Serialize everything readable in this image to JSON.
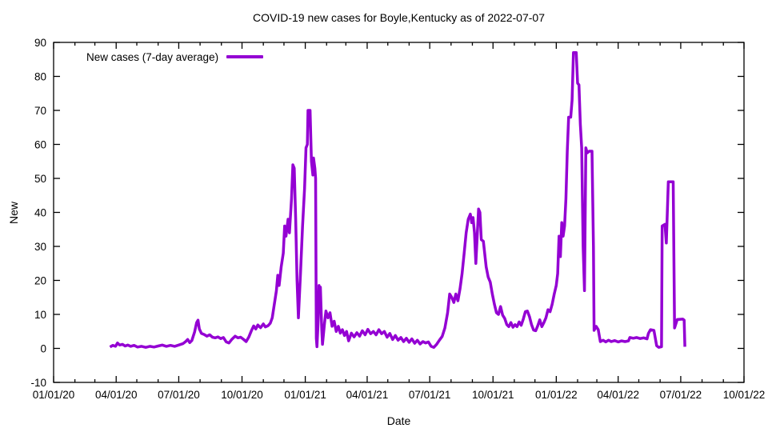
{
  "title": "COVID-19 new cases for Boyle,Kentucky as of 2022-07-07",
  "colors": {
    "line": "#9400d3",
    "axis": "#000000",
    "background": "#ffffff"
  },
  "legend": {
    "label": "New cases (7-day average)"
  },
  "chart_data": {
    "type": "line",
    "title": "COVID-19 new cases for Boyle,Kentucky as of 2022-07-07",
    "xlabel": "Date",
    "ylabel": "New",
    "grid": false,
    "legend_position": "top-left-inside",
    "x_axis": {
      "start": "2020-01-01",
      "end": "2022-10-01",
      "major_tick_labels": [
        "01/01/20",
        "04/01/20",
        "07/01/20",
        "10/01/20",
        "01/01/21",
        "04/01/21",
        "07/01/21",
        "10/01/21",
        "01/01/22",
        "04/01/22",
        "07/01/22",
        "10/01/22"
      ],
      "minor_tick_interval": "month"
    },
    "ylim": [
      -10,
      90
    ],
    "y_ticks": [
      -10,
      0,
      10,
      20,
      30,
      40,
      50,
      60,
      70,
      80,
      90
    ],
    "series": [
      {
        "name": "New cases (7-day average)",
        "color": "#9400d3",
        "points": [
          [
            "2020-03-23",
            0.4
          ],
          [
            "2020-03-27",
            0.9
          ],
          [
            "2020-03-31",
            0.6
          ],
          [
            "2020-04-03",
            1.6
          ],
          [
            "2020-04-06",
            1.0
          ],
          [
            "2020-04-10",
            1.2
          ],
          [
            "2020-04-14",
            0.7
          ],
          [
            "2020-04-18",
            1.0
          ],
          [
            "2020-04-22",
            0.6
          ],
          [
            "2020-04-27",
            0.9
          ],
          [
            "2020-05-02",
            0.4
          ],
          [
            "2020-05-08",
            0.6
          ],
          [
            "2020-05-14",
            0.3
          ],
          [
            "2020-05-20",
            0.6
          ],
          [
            "2020-05-26",
            0.4
          ],
          [
            "2020-06-01",
            0.7
          ],
          [
            "2020-06-07",
            1.0
          ],
          [
            "2020-06-13",
            0.6
          ],
          [
            "2020-06-19",
            0.9
          ],
          [
            "2020-06-25",
            0.6
          ],
          [
            "2020-07-01",
            1.0
          ],
          [
            "2020-07-07",
            1.4
          ],
          [
            "2020-07-11",
            2.0
          ],
          [
            "2020-07-14",
            2.6
          ],
          [
            "2020-07-17",
            1.7
          ],
          [
            "2020-07-20",
            2.3
          ],
          [
            "2020-07-24",
            4.8
          ],
          [
            "2020-07-27",
            7.6
          ],
          [
            "2020-07-29",
            8.3
          ],
          [
            "2020-07-31",
            5.7
          ],
          [
            "2020-08-03",
            4.4
          ],
          [
            "2020-08-07",
            4.1
          ],
          [
            "2020-08-11",
            3.6
          ],
          [
            "2020-08-15",
            4.0
          ],
          [
            "2020-08-19",
            3.3
          ],
          [
            "2020-08-23",
            3.1
          ],
          [
            "2020-08-27",
            3.4
          ],
          [
            "2020-08-31",
            2.9
          ],
          [
            "2020-09-04",
            3.2
          ],
          [
            "2020-09-08",
            1.9
          ],
          [
            "2020-09-12",
            1.6
          ],
          [
            "2020-09-16",
            2.6
          ],
          [
            "2020-09-21",
            3.6
          ],
          [
            "2020-09-25",
            3.1
          ],
          [
            "2020-09-29",
            3.3
          ],
          [
            "2020-10-03",
            2.7
          ],
          [
            "2020-10-07",
            2.0
          ],
          [
            "2020-10-11",
            3.4
          ],
          [
            "2020-10-15",
            5.4
          ],
          [
            "2020-10-18",
            6.6
          ],
          [
            "2020-10-21",
            5.7
          ],
          [
            "2020-10-24",
            6.9
          ],
          [
            "2020-10-28",
            6.1
          ],
          [
            "2020-11-01",
            7.2
          ],
          [
            "2020-11-04",
            6.3
          ],
          [
            "2020-11-08",
            6.7
          ],
          [
            "2020-11-11",
            7.4
          ],
          [
            "2020-11-14",
            9.0
          ],
          [
            "2020-11-17",
            13.0
          ],
          [
            "2020-11-20",
            17.0
          ],
          [
            "2020-11-22",
            21.5
          ],
          [
            "2020-11-24",
            18.5
          ],
          [
            "2020-11-27",
            24.0
          ],
          [
            "2020-11-30",
            28.0
          ],
          [
            "2020-12-02",
            36.0
          ],
          [
            "2020-12-04",
            33.0
          ],
          [
            "2020-12-07",
            38.0
          ],
          [
            "2020-12-09",
            34.0
          ],
          [
            "2020-12-12",
            44.0
          ],
          [
            "2020-12-14",
            54.0
          ],
          [
            "2020-12-16",
            53.0
          ],
          [
            "2020-12-18",
            38.0
          ],
          [
            "2020-12-20",
            20.0
          ],
          [
            "2020-12-22",
            9.0
          ],
          [
            "2020-12-25",
            22.0
          ],
          [
            "2020-12-28",
            36.0
          ],
          [
            "2020-12-31",
            47.0
          ],
          [
            "2021-01-02",
            59.0
          ],
          [
            "2021-01-04",
            60.0
          ],
          [
            "2021-01-05",
            70.0
          ],
          [
            "2021-01-08",
            70.0
          ],
          [
            "2021-01-10",
            55.0
          ],
          [
            "2021-01-12",
            51.0
          ],
          [
            "2021-01-13",
            56.0
          ],
          [
            "2021-01-15",
            53.0
          ],
          [
            "2021-01-16",
            50.0
          ],
          [
            "2021-01-17",
            3.0
          ],
          [
            "2021-01-18",
            0.5
          ],
          [
            "2021-01-20",
            9.0
          ],
          [
            "2021-01-21",
            18.5
          ],
          [
            "2021-01-22",
            15.0
          ],
          [
            "2021-01-23",
            18.0
          ],
          [
            "2021-01-25",
            5.5
          ],
          [
            "2021-01-26",
            1.2
          ],
          [
            "2021-01-29",
            7.5
          ],
          [
            "2021-01-31",
            11.0
          ],
          [
            "2021-02-03",
            9.0
          ],
          [
            "2021-02-06",
            10.5
          ],
          [
            "2021-02-09",
            6.5
          ],
          [
            "2021-02-12",
            8.0
          ],
          [
            "2021-02-15",
            5.0
          ],
          [
            "2021-02-18",
            6.5
          ],
          [
            "2021-02-21",
            4.5
          ],
          [
            "2021-02-24",
            5.5
          ],
          [
            "2021-02-27",
            3.8
          ],
          [
            "2021-03-02",
            5.0
          ],
          [
            "2021-03-05",
            2.2
          ],
          [
            "2021-03-09",
            4.5
          ],
          [
            "2021-03-13",
            3.4
          ],
          [
            "2021-03-17",
            4.6
          ],
          [
            "2021-03-21",
            3.6
          ],
          [
            "2021-03-25",
            5.2
          ],
          [
            "2021-03-29",
            4.0
          ],
          [
            "2021-04-02",
            5.6
          ],
          [
            "2021-04-06",
            4.3
          ],
          [
            "2021-04-10",
            5.0
          ],
          [
            "2021-04-14",
            4.0
          ],
          [
            "2021-04-18",
            5.5
          ],
          [
            "2021-04-22",
            4.3
          ],
          [
            "2021-04-26",
            5.0
          ],
          [
            "2021-04-30",
            3.3
          ],
          [
            "2021-05-04",
            4.4
          ],
          [
            "2021-05-08",
            2.6
          ],
          [
            "2021-05-12",
            3.8
          ],
          [
            "2021-05-16",
            2.4
          ],
          [
            "2021-05-20",
            3.2
          ],
          [
            "2021-05-24",
            2.0
          ],
          [
            "2021-05-28",
            3.0
          ],
          [
            "2021-06-01",
            1.8
          ],
          [
            "2021-06-05",
            2.8
          ],
          [
            "2021-06-09",
            1.5
          ],
          [
            "2021-06-13",
            2.4
          ],
          [
            "2021-06-17",
            1.3
          ],
          [
            "2021-06-21",
            2.0
          ],
          [
            "2021-06-25",
            1.6
          ],
          [
            "2021-06-29",
            1.9
          ],
          [
            "2021-07-03",
            0.6
          ],
          [
            "2021-07-07",
            0.3
          ],
          [
            "2021-07-11",
            1.2
          ],
          [
            "2021-07-15",
            2.4
          ],
          [
            "2021-07-19",
            3.5
          ],
          [
            "2021-07-23",
            6.0
          ],
          [
            "2021-07-27",
            10.5
          ],
          [
            "2021-07-30",
            16.0
          ],
          [
            "2021-08-02",
            15.0
          ],
          [
            "2021-08-05",
            13.5
          ],
          [
            "2021-08-08",
            16.0
          ],
          [
            "2021-08-11",
            14.0
          ],
          [
            "2021-08-14",
            17.5
          ],
          [
            "2021-08-17",
            22.0
          ],
          [
            "2021-08-20",
            28.0
          ],
          [
            "2021-08-23",
            34.0
          ],
          [
            "2021-08-26",
            38.0
          ],
          [
            "2021-08-29",
            39.5
          ],
          [
            "2021-08-31",
            37.0
          ],
          [
            "2021-09-02",
            38.5
          ],
          [
            "2021-09-04",
            34.0
          ],
          [
            "2021-09-06",
            25.0
          ],
          [
            "2021-09-08",
            33.0
          ],
          [
            "2021-09-10",
            41.0
          ],
          [
            "2021-09-12",
            40.0
          ],
          [
            "2021-09-14",
            32.0
          ],
          [
            "2021-09-17",
            31.5
          ],
          [
            "2021-09-21",
            24.0
          ],
          [
            "2021-09-24",
            21.0
          ],
          [
            "2021-09-27",
            19.5
          ],
          [
            "2021-09-30",
            16.0
          ],
          [
            "2021-10-03",
            13.0
          ],
          [
            "2021-10-06",
            10.5
          ],
          [
            "2021-10-09",
            10.0
          ],
          [
            "2021-10-12",
            12.3
          ],
          [
            "2021-10-15",
            9.8
          ],
          [
            "2021-10-18",
            8.8
          ],
          [
            "2021-10-21",
            7.0
          ],
          [
            "2021-10-24",
            6.4
          ],
          [
            "2021-10-27",
            7.6
          ],
          [
            "2021-10-30",
            6.2
          ],
          [
            "2021-11-02",
            7.0
          ],
          [
            "2021-11-05",
            6.4
          ],
          [
            "2021-11-08",
            7.8
          ],
          [
            "2021-11-11",
            6.8
          ],
          [
            "2021-11-14",
            8.6
          ],
          [
            "2021-11-17",
            10.8
          ],
          [
            "2021-11-20",
            11.0
          ],
          [
            "2021-11-23",
            9.4
          ],
          [
            "2021-11-26",
            7.0
          ],
          [
            "2021-11-29",
            5.4
          ],
          [
            "2021-12-02",
            5.2
          ],
          [
            "2021-12-05",
            6.6
          ],
          [
            "2021-12-08",
            8.4
          ],
          [
            "2021-12-11",
            6.4
          ],
          [
            "2021-12-14",
            7.6
          ],
          [
            "2021-12-17",
            9.0
          ],
          [
            "2021-12-20",
            11.4
          ],
          [
            "2021-12-23",
            10.8
          ],
          [
            "2021-12-26",
            13.0
          ],
          [
            "2021-12-29",
            16.0
          ],
          [
            "2022-01-01",
            18.5
          ],
          [
            "2022-01-03",
            22.0
          ],
          [
            "2022-01-05",
            33.0
          ],
          [
            "2022-01-07",
            27.0
          ],
          [
            "2022-01-09",
            37.0
          ],
          [
            "2022-01-11",
            33.0
          ],
          [
            "2022-01-13",
            36.0
          ],
          [
            "2022-01-15",
            44.0
          ],
          [
            "2022-01-17",
            58.0
          ],
          [
            "2022-01-19",
            68.0
          ],
          [
            "2022-01-22",
            68.0
          ],
          [
            "2022-01-24",
            73.0
          ],
          [
            "2022-01-26",
            87.0
          ],
          [
            "2022-01-30",
            87.0
          ],
          [
            "2022-02-01",
            78.0
          ],
          [
            "2022-02-03",
            77.5
          ],
          [
            "2022-02-05",
            66.0
          ],
          [
            "2022-02-07",
            59.0
          ],
          [
            "2022-02-09",
            30.0
          ],
          [
            "2022-02-11",
            17.0
          ],
          [
            "2022-02-13",
            59.0
          ],
          [
            "2022-02-15",
            57.5
          ],
          [
            "2022-02-18",
            58.0
          ],
          [
            "2022-02-22",
            58.0
          ],
          [
            "2022-02-24",
            30.0
          ],
          [
            "2022-02-25",
            5.3
          ],
          [
            "2022-02-28",
            6.5
          ],
          [
            "2022-03-03",
            5.5
          ],
          [
            "2022-03-06",
            2.0
          ],
          [
            "2022-03-10",
            2.4
          ],
          [
            "2022-03-14",
            1.9
          ],
          [
            "2022-03-18",
            2.4
          ],
          [
            "2022-03-22",
            2.0
          ],
          [
            "2022-03-27",
            2.3
          ],
          [
            "2022-04-01",
            1.9
          ],
          [
            "2022-04-06",
            2.2
          ],
          [
            "2022-04-11",
            2.0
          ],
          [
            "2022-04-16",
            2.2
          ],
          [
            "2022-04-18",
            3.2
          ],
          [
            "2022-04-23",
            3.0
          ],
          [
            "2022-04-28",
            3.2
          ],
          [
            "2022-05-03",
            2.9
          ],
          [
            "2022-05-08",
            3.1
          ],
          [
            "2022-05-13",
            2.8
          ],
          [
            "2022-05-15",
            4.4
          ],
          [
            "2022-05-18",
            5.5
          ],
          [
            "2022-05-23",
            5.3
          ],
          [
            "2022-05-27",
            0.8
          ],
          [
            "2022-05-30",
            0.3
          ],
          [
            "2022-06-03",
            0.5
          ],
          [
            "2022-06-04",
            36.0
          ],
          [
            "2022-06-08",
            36.5
          ],
          [
            "2022-06-10",
            31.0
          ],
          [
            "2022-06-13",
            49.0
          ],
          [
            "2022-06-20",
            49.0
          ],
          [
            "2022-06-22",
            6.0
          ],
          [
            "2022-06-26",
            8.5
          ],
          [
            "2022-07-04",
            8.6
          ],
          [
            "2022-07-06",
            8.3
          ],
          [
            "2022-07-07",
            0.5
          ]
        ]
      }
    ]
  }
}
